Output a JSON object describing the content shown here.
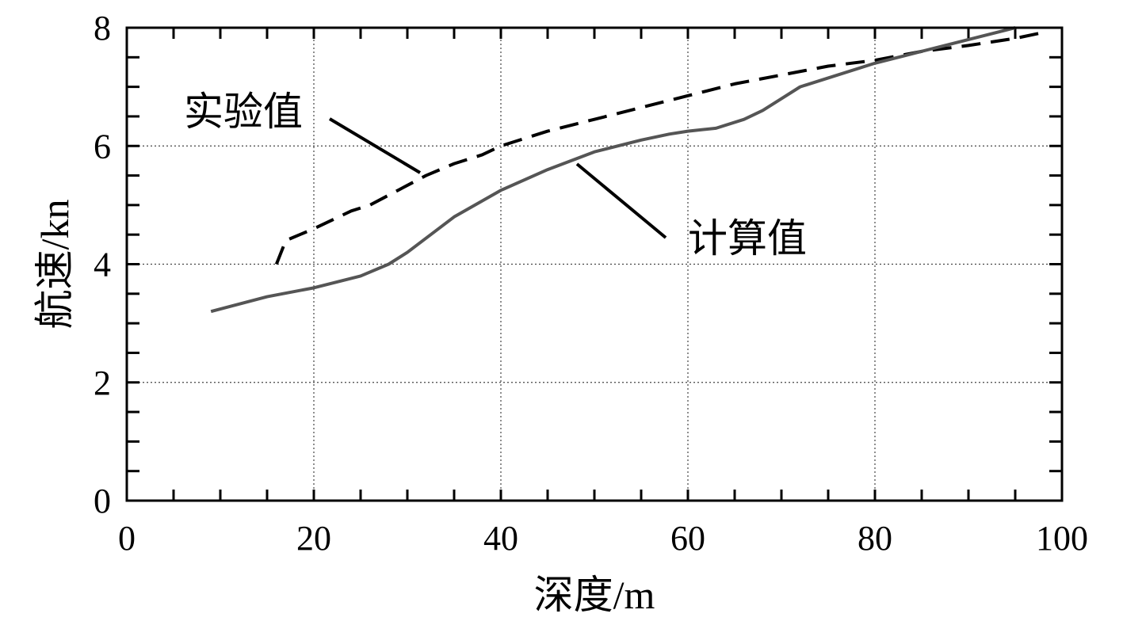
{
  "chart_data": {
    "type": "line",
    "xlabel": "深度/m",
    "ylabel": "航速/kn",
    "xlim": [
      0,
      100
    ],
    "ylim": [
      0,
      8
    ],
    "xticks": [
      0,
      20,
      40,
      60,
      80,
      100
    ],
    "yticks": [
      0,
      2,
      4,
      6,
      8
    ],
    "grid": true,
    "legend": "none",
    "series": [
      {
        "name": "实验值",
        "color": "#000000",
        "style": "dashed",
        "x": [
          16,
          17,
          20,
          24,
          26,
          29,
          32,
          35,
          38,
          40,
          45,
          50,
          55,
          60,
          65,
          70,
          75,
          80,
          85,
          90,
          95,
          98
        ],
        "y": [
          4.0,
          4.4,
          4.6,
          4.9,
          5.0,
          5.25,
          5.5,
          5.7,
          5.85,
          6.0,
          6.25,
          6.45,
          6.65,
          6.85,
          7.05,
          7.2,
          7.35,
          7.45,
          7.6,
          7.7,
          7.82,
          7.92
        ]
      },
      {
        "name": "计算值",
        "color": "#555555",
        "style": "solid",
        "x": [
          9,
          15,
          20,
          25,
          28,
          30,
          35,
          40,
          45,
          50,
          55,
          58,
          60,
          63,
          66,
          68,
          70,
          72,
          75,
          80,
          85,
          90,
          95
        ],
        "y": [
          3.2,
          3.45,
          3.6,
          3.8,
          4.0,
          4.2,
          4.8,
          5.25,
          5.6,
          5.9,
          6.1,
          6.2,
          6.25,
          6.3,
          6.45,
          6.6,
          6.8,
          7.0,
          7.15,
          7.4,
          7.6,
          7.8,
          8.0
        ]
      }
    ],
    "annotations": [
      {
        "text": "实验值",
        "series": 0
      },
      {
        "text": "计算值",
        "series": 1
      }
    ]
  }
}
